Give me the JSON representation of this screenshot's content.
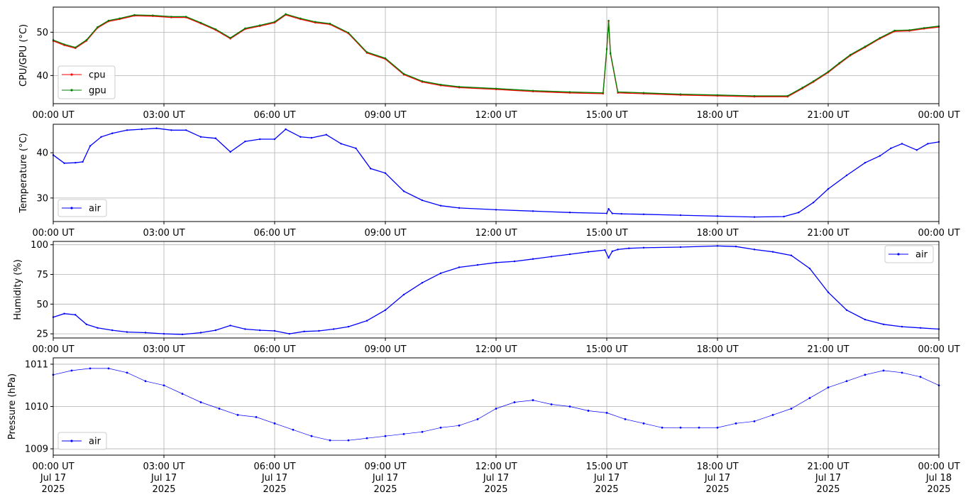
{
  "x_ticks": [
    {
      "t": 0,
      "label": "00:00 UT",
      "date1": "Jul 17",
      "date2": "2025"
    },
    {
      "t": 3,
      "label": "03:00 UT",
      "date1": "Jul 17",
      "date2": "2025"
    },
    {
      "t": 6,
      "label": "06:00 UT",
      "date1": "Jul 17",
      "date2": "2025"
    },
    {
      "t": 9,
      "label": "09:00 UT",
      "date1": "Jul 17",
      "date2": "2025"
    },
    {
      "t": 12,
      "label": "12:00 UT",
      "date1": "Jul 17",
      "date2": "2025"
    },
    {
      "t": 15,
      "label": "15:00 UT",
      "date1": "Jul 17",
      "date2": "2025"
    },
    {
      "t": 18,
      "label": "18:00 UT",
      "date1": "Jul 17",
      "date2": "2025"
    },
    {
      "t": 21,
      "label": "21:00 UT",
      "date1": "Jul 17",
      "date2": "2025"
    },
    {
      "t": 24,
      "label": "00:00 UT",
      "date1": "Jul 18",
      "date2": "2025"
    }
  ],
  "chart_data": [
    {
      "type": "line",
      "id": "cpu-gpu",
      "ylabel": "CPU/GPU (°C)",
      "xlim": [
        0,
        24
      ],
      "ylim": [
        33.5,
        55.8
      ],
      "yticks": [
        40,
        50
      ],
      "grid": true,
      "legend": "lower-left",
      "x_unit": "hours UT",
      "series": [
        {
          "name": "cpu",
          "color": "#ff0000",
          "x": [
            0,
            0.3,
            0.6,
            0.9,
            1.2,
            1.5,
            1.8,
            2.2,
            2.7,
            3.2,
            3.6,
            4.0,
            4.4,
            4.8,
            5.2,
            5.6,
            6.0,
            6.3,
            6.7,
            7.1,
            7.5,
            8.0,
            8.5,
            9.0,
            9.5,
            10.0,
            10.5,
            11.0,
            12.0,
            13.0,
            14.0,
            14.9,
            15.0,
            15.05,
            15.1,
            15.3,
            16.0,
            17.0,
            18.0,
            19.0,
            19.9,
            20.3,
            20.6,
            21.0,
            21.3,
            21.6,
            22.0,
            22.4,
            22.8,
            23.2,
            23.6,
            24.0
          ],
          "values": [
            48,
            47,
            46.3,
            48,
            51,
            52.5,
            53,
            53.8,
            53.7,
            53.4,
            53.4,
            52,
            50.5,
            48.5,
            50.7,
            51.4,
            52.2,
            54,
            53,
            52.2,
            51.8,
            49.7,
            45.2,
            43.8,
            40.2,
            38.5,
            37.7,
            37.2,
            36.8,
            36.3,
            36,
            35.8,
            46,
            52.5,
            45,
            36,
            35.8,
            35.5,
            35.3,
            35.1,
            35.1,
            37,
            38.5,
            40.7,
            42.7,
            44.6,
            46.5,
            48.5,
            50.2,
            50.3,
            50.8,
            51.2
          ]
        },
        {
          "name": "gpu",
          "color": "#008000",
          "x": [
            0,
            0.3,
            0.6,
            0.9,
            1.2,
            1.5,
            1.8,
            2.2,
            2.7,
            3.2,
            3.6,
            4.0,
            4.4,
            4.8,
            5.2,
            5.6,
            6.0,
            6.3,
            6.7,
            7.1,
            7.5,
            8.0,
            8.5,
            9.0,
            9.5,
            10.0,
            10.5,
            11.0,
            12.0,
            13.0,
            14.0,
            14.9,
            15.0,
            15.05,
            15.1,
            15.3,
            16.0,
            17.0,
            18.0,
            19.0,
            19.9,
            20.3,
            20.6,
            21.0,
            21.3,
            21.6,
            22.0,
            22.4,
            22.8,
            23.2,
            23.6,
            24.0
          ],
          "values": [
            48.2,
            47.2,
            46.5,
            48.2,
            51.2,
            52.7,
            53.2,
            54,
            53.9,
            53.6,
            53.6,
            52.2,
            50.7,
            48.7,
            50.9,
            51.6,
            52.4,
            54.2,
            53.2,
            52.4,
            52,
            49.9,
            45.4,
            44,
            40.4,
            38.7,
            37.9,
            37.4,
            37,
            36.5,
            36.2,
            36,
            46.2,
            52.7,
            45.2,
            36.2,
            36,
            35.7,
            35.5,
            35.3,
            35.3,
            37.2,
            38.7,
            40.9,
            42.9,
            44.8,
            46.7,
            48.7,
            50.4,
            50.5,
            51,
            51.4
          ]
        }
      ]
    },
    {
      "type": "line",
      "id": "temperature",
      "ylabel": "Temperature (°C)",
      "xlim": [
        0,
        24
      ],
      "ylim": [
        24.8,
        46.3
      ],
      "yticks": [
        30,
        40
      ],
      "grid": true,
      "legend": "lower-left",
      "x_unit": "hours UT",
      "series": [
        {
          "name": "air",
          "color": "#0000ff",
          "x": [
            0,
            0.3,
            0.6,
            0.8,
            1.0,
            1.3,
            1.6,
            2.0,
            2.4,
            2.8,
            3.2,
            3.6,
            4.0,
            4.4,
            4.8,
            5.2,
            5.6,
            6.0,
            6.3,
            6.7,
            7.0,
            7.4,
            7.8,
            8.2,
            8.6,
            9.0,
            9.5,
            10.0,
            10.5,
            11.0,
            12.0,
            13.0,
            14.0,
            15.0,
            15.05,
            15.15,
            15.4,
            16.0,
            17.0,
            18.0,
            19.0,
            19.8,
            20.2,
            20.6,
            21.0,
            21.5,
            22.0,
            22.4,
            22.7,
            23.0,
            23.4,
            23.7,
            24.0
          ],
          "values": [
            39.5,
            37.7,
            37.8,
            38,
            41.5,
            43.5,
            44.3,
            45,
            45.2,
            45.4,
            45,
            45,
            43.5,
            43.2,
            40.2,
            42.5,
            43,
            43,
            45.2,
            43.5,
            43.3,
            44,
            42,
            41,
            36.5,
            35.5,
            31.5,
            29.5,
            28.3,
            27.8,
            27.4,
            27.1,
            26.8,
            26.6,
            27.6,
            26.6,
            26.5,
            26.4,
            26.2,
            26,
            25.8,
            25.9,
            26.8,
            29,
            32,
            35,
            37.8,
            39.3,
            41,
            42,
            40.6,
            42,
            42.4
          ]
        }
      ]
    },
    {
      "type": "line",
      "id": "humidity",
      "ylabel": "Humidity (%)",
      "xlim": [
        0,
        24
      ],
      "ylim": [
        21.5,
        102.8
      ],
      "yticks": [
        25,
        50,
        75,
        100
      ],
      "grid": true,
      "legend": "top-right",
      "x_unit": "hours UT",
      "series": [
        {
          "name": "air",
          "color": "#0000ff",
          "x": [
            0,
            0.3,
            0.6,
            0.9,
            1.2,
            1.6,
            2.0,
            2.5,
            3.0,
            3.5,
            4.0,
            4.4,
            4.8,
            5.2,
            5.6,
            6.0,
            6.4,
            6.8,
            7.2,
            7.6,
            8.0,
            8.5,
            9.0,
            9.5,
            10.0,
            10.5,
            11.0,
            11.5,
            12.0,
            12.5,
            13.0,
            13.5,
            14.0,
            14.5,
            14.95,
            15.05,
            15.15,
            15.3,
            15.6,
            16.0,
            17.0,
            18.0,
            18.5,
            19.0,
            19.5,
            20.0,
            20.5,
            21.0,
            21.5,
            22.0,
            22.5,
            23.0,
            23.5,
            24.0
          ],
          "values": [
            39,
            42,
            41,
            33,
            30,
            28,
            26.5,
            26,
            25,
            24.5,
            26,
            28,
            32,
            29,
            28,
            27.5,
            25,
            27,
            27.5,
            29,
            31,
            36,
            45,
            58,
            68,
            76,
            81,
            83,
            85,
            86,
            88,
            90,
            92,
            94,
            95.5,
            89,
            94.5,
            96,
            97,
            97.5,
            98,
            99,
            98.5,
            96,
            94,
            91,
            80,
            60,
            45,
            37,
            33,
            31,
            30,
            29
          ]
        }
      ]
    },
    {
      "type": "scatter",
      "id": "pressure",
      "ylabel": "Pressure (hPa)",
      "xlim": [
        0,
        24
      ],
      "ylim": [
        1008.85,
        1011.15
      ],
      "yticks": [
        1009,
        1010,
        1011
      ],
      "grid": true,
      "legend": "lower-left",
      "x_unit": "hours UT",
      "series": [
        {
          "name": "air",
          "color": "#0000ff",
          "x": [
            0,
            0.5,
            1.0,
            1.5,
            2.0,
            2.5,
            3.0,
            3.5,
            4.0,
            4.5,
            5.0,
            5.5,
            6.0,
            6.5,
            7.0,
            7.5,
            8.0,
            8.5,
            9.0,
            9.5,
            10.0,
            10.5,
            11.0,
            11.5,
            12.0,
            12.5,
            13.0,
            13.5,
            14.0,
            14.5,
            15.0,
            15.5,
            16.0,
            16.5,
            17.0,
            17.5,
            18.0,
            18.5,
            19.0,
            19.5,
            20.0,
            20.5,
            21.0,
            21.5,
            22.0,
            22.5,
            23.0,
            23.5,
            24.0
          ],
          "values": [
            1010.75,
            1010.85,
            1010.9,
            1010.9,
            1010.8,
            1010.6,
            1010.5,
            1010.3,
            1010.1,
            1009.95,
            1009.8,
            1009.75,
            1009.6,
            1009.45,
            1009.3,
            1009.2,
            1009.2,
            1009.25,
            1009.3,
            1009.35,
            1009.4,
            1009.5,
            1009.55,
            1009.7,
            1009.95,
            1010.1,
            1010.15,
            1010.05,
            1010.0,
            1009.9,
            1009.85,
            1009.7,
            1009.6,
            1009.5,
            1009.5,
            1009.5,
            1009.5,
            1009.6,
            1009.65,
            1009.8,
            1009.95,
            1010.2,
            1010.45,
            1010.6,
            1010.75,
            1010.85,
            1010.8,
            1010.7,
            1010.5
          ]
        }
      ]
    }
  ]
}
